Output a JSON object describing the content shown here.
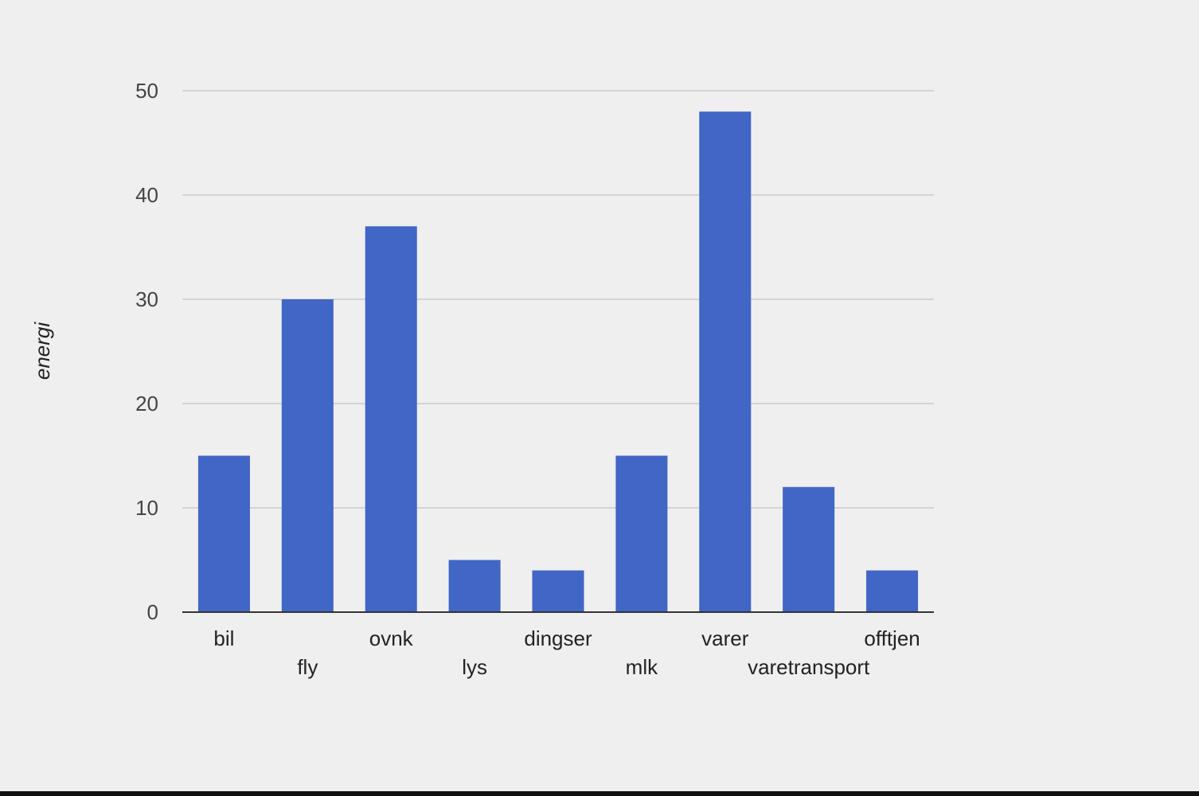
{
  "chart_data": {
    "type": "bar",
    "title": "",
    "xlabel": "",
    "ylabel": "energi",
    "categories": [
      "bil",
      "fly",
      "ovnk",
      "lys",
      "dingser",
      "mlk",
      "varer",
      "varetransport",
      "offtjen"
    ],
    "values": [
      15,
      30,
      37,
      5,
      4,
      15,
      48,
      12,
      4
    ],
    "ylim": [
      0,
      50
    ],
    "yticks": [
      0,
      10,
      20,
      30,
      40,
      50
    ],
    "grid": true,
    "legend": "none",
    "colors": {
      "bar": "#4166c5",
      "grid": "#cccccc",
      "baseline": "#333333",
      "background": "#efefef"
    }
  }
}
